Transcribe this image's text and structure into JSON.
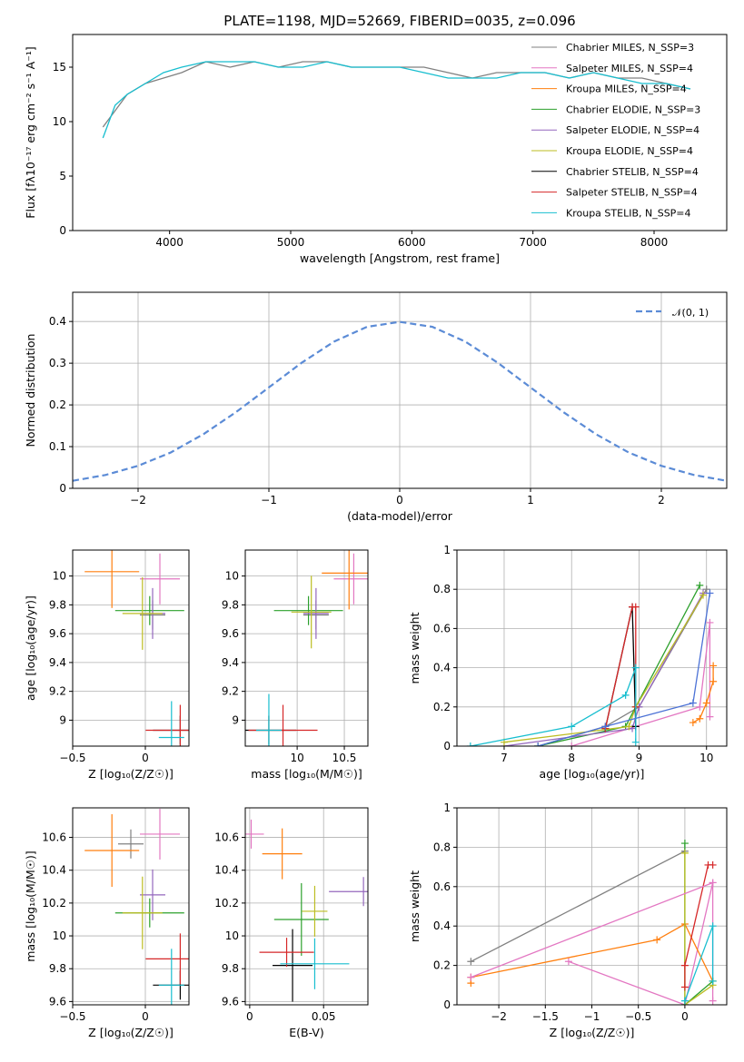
{
  "title": "PLATE=1198, MJD=52669, FIBERID=0035, z=0.096",
  "colors": {
    "Chabrier MILES": "#808080",
    "Salpeter MILES": "#e377c2",
    "Kroupa MILES": "#ff7f0e",
    "Chabrier ELODIE": "#2ca02c",
    "Salpeter ELODIE": "#9467bd",
    "Kroupa ELODIE": "#bcbd22",
    "Chabrier STELIB": "#000000",
    "Salpeter STELIB": "#d62728",
    "Kroupa STELIB": "#17becf"
  },
  "chart_data": [
    {
      "id": "spectrum",
      "type": "line",
      "title": "PLATE=1198, MJD=52669, FIBERID=0035, z=0.096",
      "xlabel": "wavelength [Angstrom, rest frame]",
      "ylabel": "Flux [fλ10⁻¹⁷ erg cm⁻² s⁻¹ A⁻¹]",
      "xlim": [
        3200,
        8600
      ],
      "ylim": [
        0,
        18
      ],
      "xticks": [
        4000,
        5000,
        6000,
        7000,
        8000
      ],
      "yticks": [
        0,
        5,
        10,
        15
      ],
      "grid": false,
      "legend_position": "top-right",
      "legend": [
        "Chabrier MILES, N_SSP=3",
        "Salpeter MILES, N_SSP=4",
        "Kroupa MILES, N_SSP=4",
        "Chabrier ELODIE, N_SSP=3",
        "Salpeter ELODIE, N_SSP=4",
        "Kroupa ELODIE, N_SSP=4",
        "Chabrier STELIB, N_SSP=4",
        "Salpeter STELIB, N_SSP=4",
        "Kroupa STELIB, N_SSP=4"
      ],
      "legend_colors": [
        "#808080",
        "#e377c2",
        "#ff7f0e",
        "#2ca02c",
        "#9467bd",
        "#bcbd22",
        "#000000",
        "#d62728",
        "#17becf"
      ],
      "series": [
        {
          "name": "Chabrier MILES, N_SSP=3",
          "x": [
            3450,
            3550,
            3650,
            3800,
            3950,
            4100,
            4300,
            4500,
            4700,
            4900,
            5100,
            5300,
            5500,
            5700,
            5900,
            6100,
            6300,
            6500,
            6700,
            6900,
            7100,
            7300,
            7500,
            7700,
            7900,
            8100,
            8300
          ],
          "y": [
            9.5,
            11,
            12.5,
            13.5,
            14,
            14.5,
            15.5,
            15,
            15.5,
            15,
            15.5,
            15.5,
            15,
            15,
            15,
            15,
            14.5,
            14,
            14.5,
            14.5,
            14.5,
            14,
            14.5,
            14,
            14,
            13.5,
            13
          ]
        },
        {
          "name": "Kroupa STELIB, N_SSP=4",
          "x": [
            3450,
            3550,
            3650,
            3800,
            3950,
            4100,
            4300,
            4500,
            4700,
            4900,
            5100,
            5300,
            5500,
            5700,
            5900,
            6100,
            6300,
            6500,
            6700,
            6900,
            7100,
            7300,
            7500,
            7700,
            7900,
            8100,
            8300
          ],
          "y": [
            8.5,
            11.5,
            12.5,
            13.5,
            14.5,
            15,
            15.5,
            15.5,
            15.5,
            15,
            15,
            15.5,
            15,
            15,
            15,
            14.5,
            14,
            14,
            14,
            14.5,
            14.5,
            14,
            14.5,
            14,
            13.5,
            13.5,
            13
          ]
        }
      ]
    },
    {
      "id": "residuals",
      "type": "line",
      "xlabel": "(data-model)/error",
      "ylabel": "Normed distribution",
      "xlim": [
        -2.5,
        2.5
      ],
      "ylim": [
        0,
        0.47
      ],
      "xticks": [
        -2,
        -1,
        0,
        1,
        2
      ],
      "yticks": [
        0.0,
        0.1,
        0.2,
        0.3,
        0.4
      ],
      "grid": true,
      "legend_position": "top-right",
      "legend": [
        "𝒩(0, 1)"
      ],
      "series": [
        {
          "name": "𝒩(0, 1)",
          "x": [
            -2.5,
            -2.25,
            -2,
            -1.75,
            -1.5,
            -1.25,
            -1,
            -0.75,
            -0.5,
            -0.25,
            0,
            0.25,
            0.5,
            0.75,
            1,
            1.25,
            1.5,
            1.75,
            2,
            2.25,
            2.5
          ],
          "y": [
            0.018,
            0.032,
            0.054,
            0.086,
            0.13,
            0.183,
            0.242,
            0.301,
            0.352,
            0.387,
            0.399,
            0.387,
            0.352,
            0.301,
            0.242,
            0.183,
            0.13,
            0.086,
            0.054,
            0.032,
            0.018
          ]
        }
      ]
    },
    {
      "id": "age-vs-Z",
      "type": "scatter",
      "xlabel": "Z [log₁₀(Z/Z☉)]",
      "ylabel": "age  [log₁₀(age/yr)]",
      "xlim": [
        -0.5,
        0.3
      ],
      "ylim": [
        8.82,
        10.18
      ],
      "xticks": [
        -0.5,
        0.0
      ],
      "yticks": [
        9.0,
        9.2,
        9.4,
        9.6,
        9.8,
        10.0
      ],
      "grid": true,
      "series": [
        {
          "name": "Chabrier MILES",
          "x": [
            0.05
          ],
          "y": [
            9.73
          ]
        },
        {
          "name": "Salpeter MILES",
          "x": [
            0.1
          ],
          "y": [
            9.98
          ]
        },
        {
          "name": "Kroupa MILES",
          "x": [
            -0.23
          ],
          "y": [
            10.03
          ]
        },
        {
          "name": "Chabrier ELODIE",
          "x": [
            0.03
          ],
          "y": [
            9.76
          ]
        },
        {
          "name": "Salpeter ELODIE",
          "x": [
            0.05
          ],
          "y": [
            9.74
          ]
        },
        {
          "name": "Kroupa ELODIE",
          "x": [
            -0.02
          ],
          "y": [
            9.74
          ]
        },
        {
          "name": "Chabrier STELIB",
          "x": [
            0.24
          ],
          "y": [
            8.93
          ]
        },
        {
          "name": "Salpeter STELIB",
          "x": [
            0.24
          ],
          "y": [
            8.93
          ]
        },
        {
          "name": "Kroupa STELIB",
          "x": [
            0.18
          ],
          "y": [
            8.88
          ]
        }
      ]
    },
    {
      "id": "age-vs-mass",
      "type": "scatter",
      "xlabel": "mass [log₁₀(M/M☉)]",
      "xlim": [
        9.45,
        10.75
      ],
      "ylim": [
        8.82,
        10.18
      ],
      "xticks": [
        10.0,
        10.5
      ],
      "yticks": [
        9.0,
        9.2,
        9.4,
        9.6,
        9.8,
        10.0
      ],
      "grid": true,
      "series": [
        {
          "name": "Chabrier MILES",
          "x": [
            10.2
          ],
          "y": [
            9.73
          ]
        },
        {
          "name": "Salpeter MILES",
          "x": [
            10.6
          ],
          "y": [
            9.98
          ]
        },
        {
          "name": "Kroupa MILES",
          "x": [
            10.55
          ],
          "y": [
            10.02
          ]
        },
        {
          "name": "Chabrier ELODIE",
          "x": [
            10.12
          ],
          "y": [
            9.76
          ]
        },
        {
          "name": "Salpeter ELODIE",
          "x": [
            10.2
          ],
          "y": [
            9.74
          ]
        },
        {
          "name": "Kroupa ELODIE",
          "x": [
            10.15
          ],
          "y": [
            9.75
          ]
        },
        {
          "name": "Chabrier STELIB",
          "x": [
            9.7
          ],
          "y": [
            8.93
          ]
        },
        {
          "name": "Salpeter STELIB",
          "x": [
            9.85
          ],
          "y": [
            8.93
          ]
        },
        {
          "name": "Kroupa STELIB",
          "x": [
            9.7
          ],
          "y": [
            8.93
          ]
        }
      ]
    },
    {
      "id": "massweight-vs-age",
      "type": "line",
      "xlabel": "age  [log₁₀(age/yr)]",
      "ylabel": "mass weight",
      "xlim": [
        6.3,
        10.3
      ],
      "ylim": [
        0,
        1
      ],
      "xticks": [
        7,
        8,
        9,
        10
      ],
      "yticks": [
        0.0,
        0.2,
        0.4,
        0.6,
        0.8,
        1.0
      ],
      "grid": true,
      "series": [
        {
          "name": "Chabrier MILES",
          "x": [
            7.5,
            8.5,
            9.0,
            10.0
          ],
          "y": [
            0.0,
            0.1,
            0.2,
            0.8
          ]
        },
        {
          "name": "Salpeter MILES",
          "x": [
            8.0,
            9.9,
            10.05,
            10.05
          ],
          "y": [
            0.0,
            0.2,
            0.63,
            0.15
          ]
        },
        {
          "name": "Kroupa MILES",
          "x": [
            9.8,
            9.9,
            10.0,
            10.1,
            10.1
          ],
          "y": [
            0.12,
            0.14,
            0.22,
            0.33,
            0.41
          ]
        },
        {
          "name": "Chabrier ELODIE",
          "x": [
            7.5,
            8.8,
            8.95,
            9.9
          ],
          "y": [
            0.0,
            0.1,
            0.2,
            0.82
          ]
        },
        {
          "name": "Salpeter ELODIE",
          "x": [
            7.0,
            8.9,
            9.0,
            9.95
          ],
          "y": [
            0.0,
            0.09,
            0.2,
            0.78
          ]
        },
        {
          "name": "Kroupa ELODIE",
          "x": [
            7.0,
            8.85,
            8.95,
            9.95
          ],
          "y": [
            0.02,
            0.1,
            0.2,
            0.77
          ]
        },
        {
          "name": "Chabrier STELIB",
          "x": [
            8.5,
            8.9,
            8.95
          ],
          "y": [
            0.09,
            0.71,
            0.1
          ]
        },
        {
          "name": "Salpeter STELIB",
          "x": [
            8.5,
            8.9,
            8.95,
            8.95
          ],
          "y": [
            0.09,
            0.71,
            0.71,
            0.2
          ]
        },
        {
          "name": "Kroupa STELIB",
          "x": [
            6.5,
            8.0,
            8.8,
            8.95,
            8.95
          ],
          "y": [
            0.0,
            0.1,
            0.26,
            0.4,
            0.02
          ]
        },
        {
          "name": "Kroupa (blue)",
          "x": [
            7.5,
            8.5,
            9.8,
            10.05
          ],
          "y": [
            0.0,
            0.1,
            0.22,
            0.78
          ]
        }
      ]
    },
    {
      "id": "mass-vs-Z",
      "type": "scatter",
      "xlabel": "Z [log₁₀(Z/Z☉)]",
      "ylabel": "mass [log₁₀(M/M☉)]",
      "xlim": [
        -0.5,
        0.3
      ],
      "ylim": [
        9.58,
        10.78
      ],
      "xticks": [
        -0.5,
        0.0
      ],
      "yticks": [
        9.6,
        9.8,
        10.0,
        10.2,
        10.4,
        10.6
      ],
      "grid": true,
      "series": [
        {
          "name": "Chabrier MILES",
          "x": [
            -0.1
          ],
          "y": [
            10.56
          ]
        },
        {
          "name": "Salpeter MILES",
          "x": [
            0.1
          ],
          "y": [
            10.62
          ]
        },
        {
          "name": "Kroupa MILES",
          "x": [
            -0.23
          ],
          "y": [
            10.52
          ]
        },
        {
          "name": "Chabrier ELODIE",
          "x": [
            0.03
          ],
          "y": [
            10.14
          ]
        },
        {
          "name": "Salpeter ELODIE",
          "x": [
            0.05
          ],
          "y": [
            10.25
          ]
        },
        {
          "name": "Kroupa ELODIE",
          "x": [
            -0.02
          ],
          "y": [
            10.14
          ]
        },
        {
          "name": "Chabrier STELIB",
          "x": [
            0.24
          ],
          "y": [
            9.7
          ]
        },
        {
          "name": "Salpeter STELIB",
          "x": [
            0.24
          ],
          "y": [
            9.86
          ]
        },
        {
          "name": "Kroupa STELIB",
          "x": [
            0.18
          ],
          "y": [
            9.7
          ]
        }
      ]
    },
    {
      "id": "mass-vs-EBV",
      "type": "scatter",
      "xlabel": "E(B-V)",
      "xlim": [
        -0.003,
        0.08
      ],
      "ylim": [
        9.58,
        10.78
      ],
      "xticks": [
        0.0,
        0.05
      ],
      "yticks": [
        9.6,
        9.8,
        10.0,
        10.2,
        10.4,
        10.6
      ],
      "grid": true,
      "series": [
        {
          "name": "Salpeter MILES",
          "x": [
            0.001
          ],
          "y": [
            10.62
          ]
        },
        {
          "name": "Kroupa MILES",
          "x": [
            0.022
          ],
          "y": [
            10.5
          ]
        },
        {
          "name": "Chabrier ELODIE",
          "x": [
            0.035
          ],
          "y": [
            10.1
          ]
        },
        {
          "name": "Salpeter ELODIE",
          "x": [
            0.077
          ],
          "y": [
            10.27
          ]
        },
        {
          "name": "Kroupa ELODIE",
          "x": [
            0.044
          ],
          "y": [
            10.15
          ]
        },
        {
          "name": "Chabrier STELIB",
          "x": [
            0.029
          ],
          "y": [
            9.82
          ]
        },
        {
          "name": "Salpeter STELIB",
          "x": [
            0.025
          ],
          "y": [
            9.9
          ]
        },
        {
          "name": "Kroupa STELIB",
          "x": [
            0.044
          ],
          "y": [
            9.83
          ]
        }
      ]
    },
    {
      "id": "massweight-vs-Z",
      "type": "line",
      "xlabel": "Z [log₁₀(Z/Z☉)]",
      "ylabel": "mass weight",
      "xlim": [
        -2.45,
        0.45
      ],
      "ylim": [
        0,
        1
      ],
      "xticks": [
        -2.0,
        -1.5,
        -1.0,
        -0.5,
        0.0
      ],
      "yticks": [
        0.0,
        0.2,
        0.4,
        0.6,
        0.8,
        1.0
      ],
      "grid": true,
      "series": [
        {
          "name": "Chabrier MILES",
          "x": [
            -2.3,
            0.0
          ],
          "y": [
            0.22,
            0.78
          ]
        },
        {
          "name": "Salpeter MILES",
          "x": [
            -1.25,
            0.0,
            0.3,
            0.3
          ],
          "y": [
            0.22,
            0.0,
            0.62,
            0.02
          ]
        },
        {
          "name": "Kroupa MILES",
          "x": [
            -2.3,
            -2.3,
            -0.3,
            0.0,
            0.3
          ],
          "y": [
            0.11,
            0.14,
            0.33,
            0.41,
            0.12
          ]
        },
        {
          "name": "Chabrier ELODIE",
          "x": [
            0.0,
            0.0,
            0.3
          ],
          "y": [
            0.82,
            0.0,
            0.12
          ]
        },
        {
          "name": "Kroupa ELODIE",
          "x": [
            0.0,
            0.0,
            0.3
          ],
          "y": [
            0.77,
            0.0,
            0.1
          ]
        },
        {
          "name": "Salpeter STELIB",
          "x": [
            0.0,
            0.0,
            0.25,
            0.3
          ],
          "y": [
            0.09,
            0.2,
            0.71,
            0.71
          ]
        },
        {
          "name": "Kroupa STELIB",
          "x": [
            0.0,
            0.3,
            0.3
          ],
          "y": [
            0.02,
            0.4,
            0.12
          ]
        },
        {
          "name": "Salpeter MILES (line)",
          "x": [
            -2.3,
            0.3
          ],
          "y": [
            0.14,
            0.62
          ]
        }
      ]
    }
  ]
}
